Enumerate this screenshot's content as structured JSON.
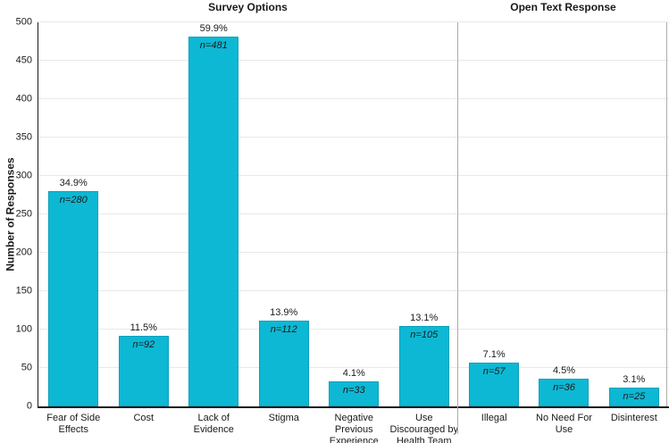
{
  "chart_data": {
    "type": "bar",
    "titles": {
      "survey": "Survey Options",
      "open_text": "Open Text Response"
    },
    "ylabel": "Number of Responses",
    "ylim": [
      0,
      500
    ],
    "ytick_step": 50,
    "grid": true,
    "bar_color": "#0db8d4",
    "bar_border_color": "#09a0bb",
    "gridline_color": "#e9e9e9",
    "divider_color": "#adadad",
    "groups": [
      {
        "name": "Survey Options",
        "bars": [
          {
            "label_lines": [
              "Fear of Side",
              "Effects"
            ],
            "pct": "34.9%",
            "n_label": "n=280",
            "value": 280
          },
          {
            "label_lines": [
              "Cost"
            ],
            "pct": "11.5%",
            "n_label": "n=92",
            "value": 92
          },
          {
            "label_lines": [
              "Lack of",
              "Evidence"
            ],
            "pct": "59.9%",
            "n_label": "n=481",
            "value": 481
          },
          {
            "label_lines": [
              "Stigma"
            ],
            "pct": "13.9%",
            "n_label": "n=112",
            "value": 112
          },
          {
            "label_lines": [
              "Negative",
              "Previous",
              "Experience"
            ],
            "pct": "4.1%",
            "n_label": "n=33",
            "value": 33
          },
          {
            "label_lines": [
              "Use",
              "Discouraged by",
              "Health Team"
            ],
            "pct": "13.1%",
            "n_label": "n=105",
            "value": 105
          }
        ]
      },
      {
        "name": "Open Text Response",
        "bars": [
          {
            "label_lines": [
              "Illegal"
            ],
            "pct": "7.1%",
            "n_label": "n=57",
            "value": 57
          },
          {
            "label_lines": [
              "No Need For",
              "Use"
            ],
            "pct": "4.5%",
            "n_label": "n=36",
            "value": 36
          },
          {
            "label_lines": [
              "Disinterest"
            ],
            "pct": "3.1%",
            "n_label": "n=25",
            "value": 25
          }
        ]
      }
    ]
  }
}
